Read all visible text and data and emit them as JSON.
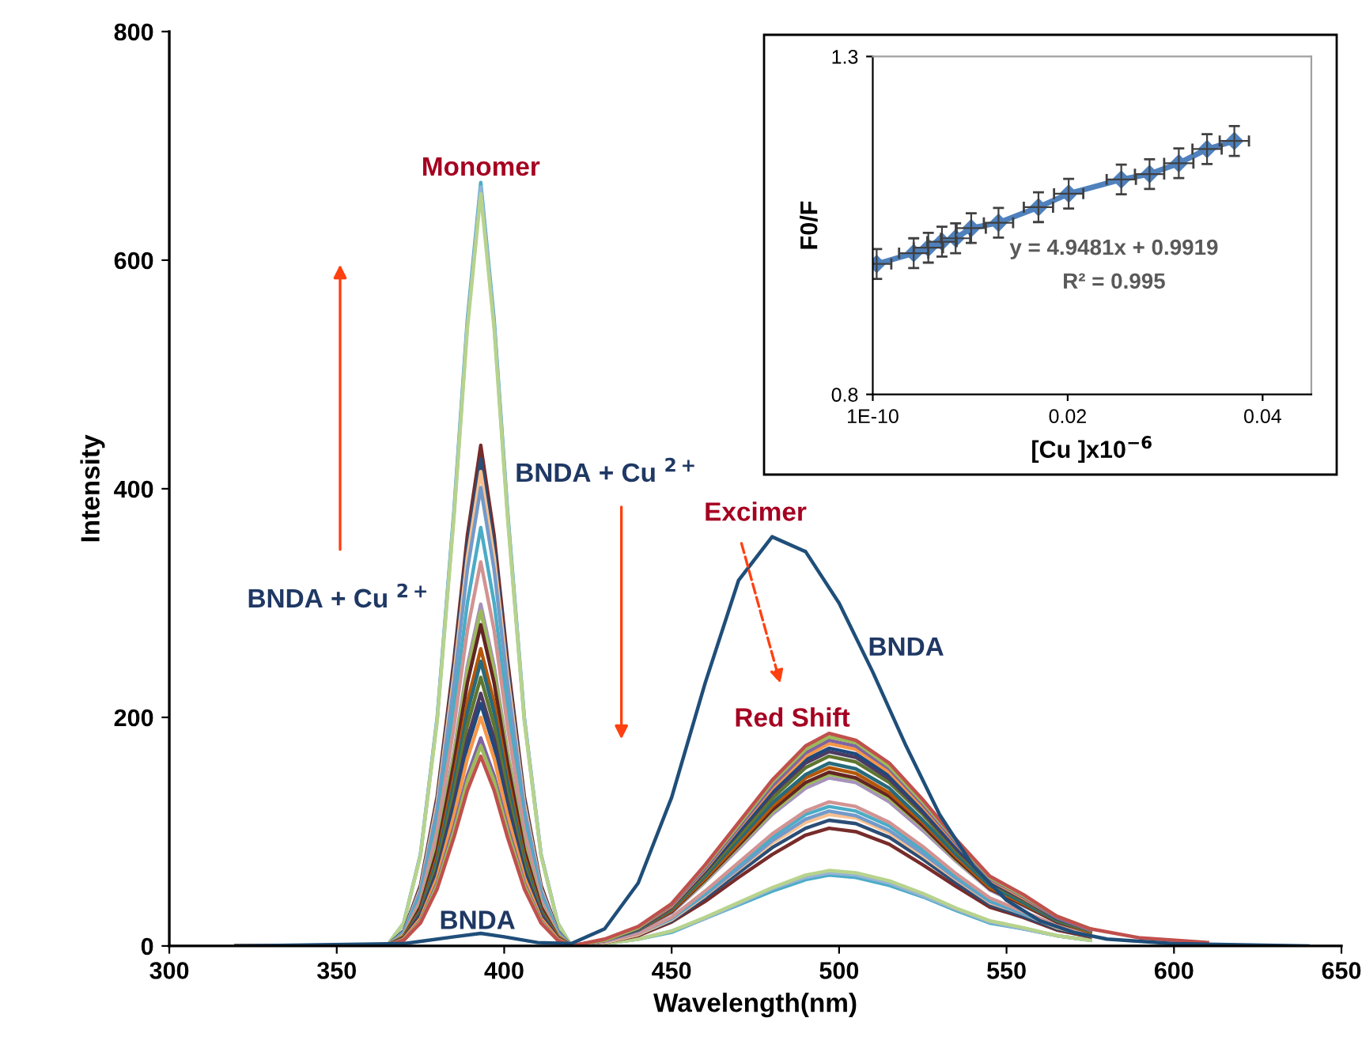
{
  "chart_data": [
    {
      "type": "line",
      "xlabel": "Wavelength(nm)",
      "ylabel": "Intensity",
      "xlim": [
        300,
        650
      ],
      "ylim": [
        0,
        800
      ],
      "xticks": [
        300,
        350,
        400,
        450,
        500,
        550,
        600,
        650
      ],
      "yticks": [
        0,
        200,
        400,
        600,
        800
      ],
      "grid": false,
      "legend": false,
      "marker": "none",
      "line_style": "solid",
      "x": [
        320,
        365,
        370,
        375,
        380,
        385,
        389,
        393,
        397,
        401,
        406,
        411,
        416,
        420,
        430,
        440,
        450,
        460,
        470,
        480,
        490,
        497,
        505,
        515,
        525,
        535,
        545,
        555,
        565,
        575,
        590,
        610
      ],
      "series": [
        {
          "color": "#4bacc6",
          "values": [
            0,
            0,
            20,
            80,
            200,
            381,
            548,
            668,
            548,
            381,
            200,
            80,
            20,
            0,
            2,
            6,
            12,
            24,
            36,
            48,
            58,
            62,
            60,
            53,
            43,
            31,
            20,
            15,
            9,
            5,
            null,
            null
          ]
        },
        {
          "color": "#95b3d7",
          "values": [
            0,
            0,
            20,
            80,
            199,
            378,
            544,
            664,
            544,
            378,
            199,
            80,
            20,
            0,
            2,
            6,
            13,
            24,
            37,
            50,
            60,
            64,
            62,
            55,
            44,
            32,
            21,
            15,
            9,
            5,
            null,
            null
          ]
        },
        {
          "color": "#b7d38c",
          "values": [
            0,
            0,
            20,
            79,
            197,
            375,
            540,
            658,
            540,
            375,
            197,
            79,
            20,
            0,
            2,
            6,
            13,
            25,
            38,
            51,
            62,
            66,
            64,
            57,
            46,
            33,
            22,
            16,
            9,
            5,
            null,
            null
          ]
        },
        {
          "color": "#772c2a",
          "values": [
            0,
            0,
            13,
            53,
            131,
            250,
            359,
            438,
            359,
            250,
            131,
            53,
            13,
            0,
            3,
            9,
            21,
            39,
            60,
            80,
            97,
            103,
            100,
            89,
            71,
            52,
            34,
            25,
            14,
            8,
            null,
            null
          ]
        },
        {
          "color": "#2c4d75",
          "values": [
            0,
            0,
            13,
            51,
            128,
            243,
            349,
            426,
            349,
            243,
            128,
            51,
            13,
            0,
            3,
            10,
            22,
            42,
            64,
            86,
            103,
            110,
            107,
            95,
            76,
            55,
            36,
            26,
            15,
            9,
            null,
            null
          ]
        },
        {
          "color": "#fac090",
          "values": [
            0,
            0,
            12,
            50,
            125,
            237,
            340,
            415,
            340,
            237,
            125,
            50,
            12,
            0,
            3,
            10,
            23,
            44,
            67,
            90,
            108,
            115,
            112,
            99,
            79,
            58,
            38,
            28,
            16,
            9,
            null,
            null
          ]
        },
        {
          "color": "#729aca",
          "values": [
            0,
            0,
            12,
            48,
            120,
            229,
            329,
            401,
            329,
            229,
            120,
            48,
            12,
            0,
            4,
            11,
            24,
            45,
            68,
            92,
            111,
            118,
            114,
            101,
            81,
            59,
            39,
            28,
            17,
            9,
            null,
            null
          ]
        },
        {
          "color": "#4bacc6",
          "values": [
            0,
            0,
            11,
            44,
            110,
            209,
            300,
            366,
            300,
            209,
            110,
            44,
            11,
            0,
            4,
            11,
            24,
            46,
            71,
            95,
            115,
            122,
            118,
            105,
            84,
            61,
            40,
            29,
            17,
            10,
            null,
            null
          ]
        },
        {
          "color": "#d19392",
          "values": [
            0,
            0,
            10,
            40,
            101,
            192,
            276,
            336,
            276,
            192,
            101,
            40,
            10,
            0,
            4,
            11,
            25,
            48,
            73,
            98,
            118,
            126,
            122,
            108,
            87,
            63,
            42,
            30,
            18,
            10,
            null,
            null
          ]
        },
        {
          "color": "#a692bc",
          "values": [
            0,
            0,
            9,
            36,
            90,
            170,
            245,
            299,
            245,
            170,
            90,
            36,
            9,
            0,
            4,
            13,
            29,
            56,
            85,
            115,
            138,
            147,
            143,
            126,
            101,
            74,
            49,
            35,
            21,
            12,
            null,
            null
          ]
        },
        {
          "color": "#9bbb59",
          "values": [
            0,
            0,
            9,
            35,
            88,
            167,
            240,
            293,
            240,
            167,
            88,
            35,
            9,
            0,
            5,
            14,
            30,
            57,
            87,
            117,
            141,
            150,
            146,
            129,
            104,
            75,
            50,
            36,
            21,
            12,
            null,
            null
          ]
        },
        {
          "color": "#632523",
          "values": [
            0,
            0,
            8,
            34,
            84,
            160,
            230,
            281,
            230,
            160,
            84,
            34,
            8,
            0,
            5,
            14,
            30,
            58,
            88,
            119,
            143,
            152,
            147,
            131,
            105,
            76,
            50,
            36,
            21,
            12,
            null,
            null
          ]
        },
        {
          "color": "#b65708",
          "values": [
            0,
            0,
            8,
            31,
            78,
            148,
            213,
            260,
            213,
            148,
            78,
            31,
            8,
            0,
            5,
            14,
            31,
            59,
            90,
            122,
            147,
            156,
            151,
            134,
            108,
            78,
            51,
            37,
            22,
            12,
            null,
            null
          ]
        },
        {
          "color": "#276a7c",
          "values": [
            0,
            0,
            7,
            30,
            75,
            142,
            204,
            249,
            204,
            142,
            75,
            30,
            7,
            0,
            5,
            14,
            32,
            61,
            93,
            125,
            150,
            160,
            155,
            138,
            110,
            80,
            53,
            38,
            22,
            13,
            null,
            null
          ]
        },
        {
          "color": "#5f7530",
          "values": [
            0,
            0,
            7,
            28,
            71,
            134,
            193,
            235,
            193,
            134,
            71,
            28,
            7,
            0,
            5,
            15,
            33,
            63,
            96,
            129,
            156,
            166,
            161,
            143,
            115,
            83,
            55,
            40,
            23,
            13,
            null,
            null
          ]
        },
        {
          "color": "#4d3b62",
          "values": [
            0,
            0,
            7,
            27,
            66,
            126,
            181,
            221,
            181,
            126,
            66,
            27,
            7,
            0,
            5,
            15,
            34,
            65,
            99,
            133,
            160,
            170,
            165,
            146,
            117,
            85,
            56,
            41,
            24,
            14,
            null,
            null
          ]
        },
        {
          "color": "#1f497d",
          "values": [
            0,
            0,
            6,
            25,
            64,
            121,
            174,
            212,
            174,
            121,
            64,
            25,
            6,
            0,
            5,
            16,
            35,
            66,
            100,
            135,
            163,
            173,
            168,
            149,
            119,
            87,
            57,
            42,
            24,
            14,
            null,
            null
          ]
        },
        {
          "color": "#f79646",
          "values": [
            0,
            0,
            6,
            24,
            60,
            114,
            164,
            200,
            164,
            114,
            60,
            24,
            6,
            0,
            5,
            16,
            35,
            67,
            103,
            138,
            166,
            177,
            172,
            152,
            122,
            89,
            58,
            42,
            25,
            14,
            null,
            null
          ]
        },
        {
          "color": "#8064a2",
          "values": [
            0,
            0,
            5,
            22,
            55,
            104,
            149,
            182,
            149,
            104,
            55,
            22,
            5,
            0,
            5,
            16,
            36,
            68,
            104,
            140,
            169,
            180,
            175,
            155,
            124,
            90,
            59,
            43,
            25,
            14,
            null,
            null
          ]
        },
        {
          "color": "#9bbb59",
          "values": [
            0,
            0,
            5,
            21,
            53,
            100,
            144,
            175,
            144,
            100,
            53,
            21,
            5,
            0,
            5,
            16,
            37,
            70,
            106,
            143,
            172,
            183,
            178,
            157,
            126,
            92,
            60,
            44,
            26,
            15,
            null,
            null
          ]
        },
        {
          "color": "#c0504d",
          "values": [
            0,
            0,
            5,
            20,
            50,
            95,
            136,
            166,
            136,
            95,
            50,
            20,
            5,
            0,
            6,
            17,
            37,
            71,
            108,
            145,
            175,
            186,
            180,
            160,
            128,
            93,
            61,
            45,
            26,
            15,
            7,
            3
          ]
        },
        {
          "color": "#1f4e79",
          "x": [
            320,
            370,
            385,
            393,
            400,
            410,
            420,
            430,
            440,
            450,
            460,
            470,
            480,
            490,
            500,
            510,
            520,
            530,
            540,
            550,
            560,
            570,
            580,
            600,
            640
          ],
          "values": [
            0,
            2,
            8,
            11,
            8,
            3,
            2,
            15,
            55,
            130,
            230,
            320,
            358,
            345,
            300,
            240,
            175,
            115,
            70,
            40,
            22,
            12,
            6,
            2,
            0
          ]
        }
      ],
      "annotations": [
        "Monomer",
        "BNDA + Cu $^{2+}$",
        "BNDA + Cu $^{2+}$",
        "Excimer",
        "BNDA",
        "Red Shift",
        "BNDA"
      ]
    },
    {
      "type": "line",
      "xlabel": "[Cu ]x10$^{−6}$",
      "ylabel": "F0/F",
      "xlim": [
        0,
        0.045
      ],
      "ylim": [
        0.8,
        1.3
      ],
      "xticks": [
        {
          "value": 1e-10,
          "label": "1E-10"
        },
        0.02,
        0.04
      ],
      "yticks": [
        0.8,
        1.3
      ],
      "grid": false,
      "legend": false,
      "marker": "diamond",
      "line_style": "solid",
      "x": [
        0.0004,
        0.0042,
        0.0057,
        0.0071,
        0.0085,
        0.0101,
        0.0129,
        0.017,
        0.0201,
        0.0255,
        0.0284,
        0.0314,
        0.0343,
        0.0371
      ],
      "series": [
        {
          "color": "#4f81bd",
          "values": [
            0.993,
            1.009,
            1.017,
            1.026,
            1.031,
            1.046,
            1.054,
            1.077,
            1.097,
            1.118,
            1.126,
            1.142,
            1.163,
            1.175
          ],
          "errors": [
            0.022,
            0.022,
            0.022,
            0.022,
            0.022,
            0.022,
            0.022,
            0.022,
            0.022,
            0.022,
            0.022,
            0.022,
            0.022,
            0.022
          ],
          "xerrors": [
            0.0015,
            0.0015,
            0.0015,
            0.0015,
            0.0015,
            0.0015,
            0.0015,
            0.0015,
            0.0015,
            0.0015,
            0.0015,
            0.0015,
            0.0015,
            0.0015
          ]
        }
      ],
      "annotations": [
        "y = 4.9481x + 0.9919",
        "R² = 0.995"
      ]
    }
  ]
}
